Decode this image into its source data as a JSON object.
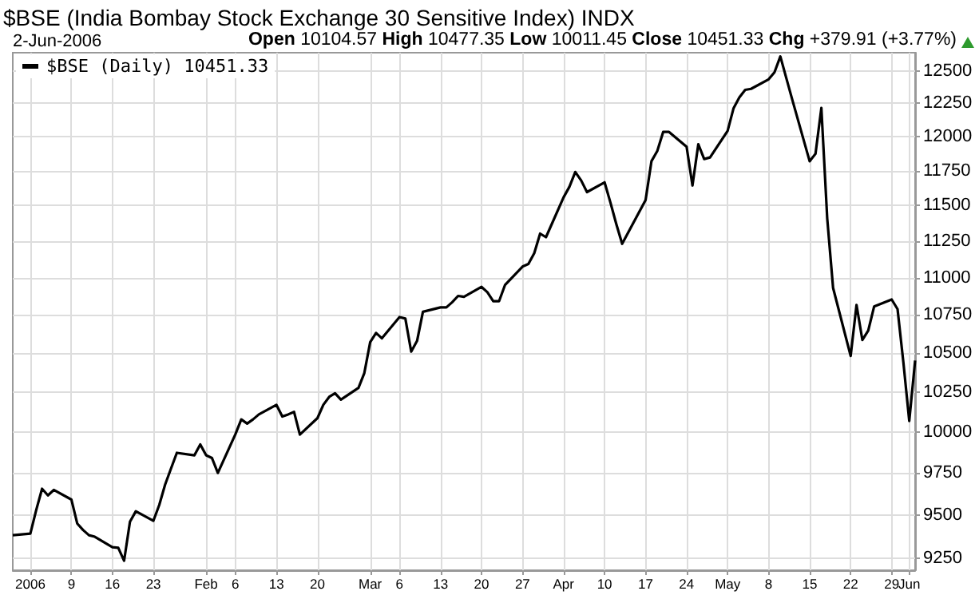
{
  "chart_data": {
    "type": "line",
    "title": "$BSE (India Bombay Stock Exchange 30 Sensitive Index) INDX",
    "subtitle": "2-Jun-2006",
    "annotations": [
      "Open 10104.57 High 10477.35 Low 10011.45 Close 10451.33 Chg +379.91 (+3.77%)"
    ],
    "x": [
      "2005-12-30",
      "2006-01-02",
      "2006-01-03",
      "2006-01-04",
      "2006-01-05",
      "2006-01-06",
      "2006-01-09",
      "2006-01-10",
      "2006-01-11",
      "2006-01-12",
      "2006-01-13",
      "2006-01-16",
      "2006-01-17",
      "2006-01-18",
      "2006-01-19",
      "2006-01-20",
      "2006-01-23",
      "2006-01-24",
      "2006-01-25",
      "2006-01-26",
      "2006-01-27",
      "2006-01-30",
      "2006-01-31",
      "2006-02-01",
      "2006-02-02",
      "2006-02-03",
      "2006-02-06",
      "2006-02-07",
      "2006-02-08",
      "2006-02-09",
      "2006-02-10",
      "2006-02-13",
      "2006-02-14",
      "2006-02-15",
      "2006-02-16",
      "2006-02-17",
      "2006-02-20",
      "2006-02-21",
      "2006-02-22",
      "2006-02-23",
      "2006-02-24",
      "2006-02-27",
      "2006-02-28",
      "2006-03-01",
      "2006-03-02",
      "2006-03-03",
      "2006-03-06",
      "2006-03-07",
      "2006-03-08",
      "2006-03-09",
      "2006-03-10",
      "2006-03-13",
      "2006-03-14",
      "2006-03-15",
      "2006-03-16",
      "2006-03-17",
      "2006-03-20",
      "2006-03-21",
      "2006-03-22",
      "2006-03-23",
      "2006-03-24",
      "2006-03-27",
      "2006-03-28",
      "2006-03-29",
      "2006-03-30",
      "2006-03-31",
      "2006-04-03",
      "2006-04-04",
      "2006-04-05",
      "2006-04-06",
      "2006-04-07",
      "2006-04-10",
      "2006-04-11",
      "2006-04-12",
      "2006-04-13",
      "2006-04-17",
      "2006-04-18",
      "2006-04-19",
      "2006-04-20",
      "2006-04-21",
      "2006-04-24",
      "2006-04-25",
      "2006-04-26",
      "2006-04-27",
      "2006-04-28",
      "2006-05-01",
      "2006-05-02",
      "2006-05-03",
      "2006-05-04",
      "2006-05-05",
      "2006-05-08",
      "2006-05-09",
      "2006-05-10",
      "2006-05-11",
      "2006-05-12",
      "2006-05-15",
      "2006-05-16",
      "2006-05-17",
      "2006-05-18",
      "2006-05-19",
      "2006-05-22",
      "2006-05-23",
      "2006-05-24",
      "2006-05-25",
      "2006-05-26",
      "2006-05-29",
      "2006-05-30",
      "2006-05-31",
      "2006-06-01",
      "2006-06-02"
    ],
    "series": [
      {
        "name": "$BSE (Daily) 10451.33",
        "color": "#000000",
        "values": [
          9381,
          9390,
          9528,
          9654,
          9615,
          9647,
          9590,
          9449,
          9411,
          9381,
          9372,
          9312,
          9308,
          9234,
          9459,
          9521,
          9465,
          9558,
          9679,
          9775,
          9871,
          9856,
          9922,
          9856,
          9839,
          9749,
          9985,
          10077,
          10051,
          10077,
          10108,
          10168,
          10095,
          10108,
          10124,
          9983,
          10085,
          10168,
          10218,
          10241,
          10201,
          10275,
          10370,
          10570,
          10630,
          10595,
          10735,
          10725,
          10508,
          10578,
          10770,
          10799,
          10799,
          10834,
          10876,
          10870,
          10937,
          10901,
          10841,
          10841,
          10949,
          11075,
          11093,
          11167,
          11303,
          11278,
          11559,
          11635,
          11742,
          11681,
          11597,
          11667,
          11522,
          11370,
          11232,
          11540,
          11820,
          11895,
          12036,
          12036,
          11926,
          11644,
          11945,
          11836,
          11848,
          12044,
          12212,
          12296,
          12353,
          12361,
          12434,
          12488,
          12611,
          12446,
          12284,
          11820,
          11875,
          12216,
          11409,
          10930,
          10480,
          10816,
          10584,
          10646,
          10805,
          10852,
          10788,
          10438,
          10067,
          10451
        ]
      }
    ],
    "xlim": [
      "2005-12-30",
      "2006-06-02"
    ],
    "ylim": [
      9180,
      12640
    ],
    "xticks": [
      {
        "value": "2006-01-02",
        "label": "2006"
      },
      {
        "value": "2006-01-09",
        "label": "9"
      },
      {
        "value": "2006-01-16",
        "label": "16"
      },
      {
        "value": "2006-01-23",
        "label": "23"
      },
      {
        "value": "2006-02-01",
        "label": "Feb"
      },
      {
        "value": "2006-02-06",
        "label": "6"
      },
      {
        "value": "2006-02-13",
        "label": "13"
      },
      {
        "value": "2006-02-20",
        "label": "20"
      },
      {
        "value": "2006-03-01",
        "label": "Mar"
      },
      {
        "value": "2006-03-06",
        "label": "6"
      },
      {
        "value": "2006-03-13",
        "label": "13"
      },
      {
        "value": "2006-03-20",
        "label": "20"
      },
      {
        "value": "2006-03-27",
        "label": "27"
      },
      {
        "value": "2006-04-03",
        "label": "Apr"
      },
      {
        "value": "2006-04-10",
        "label": "10"
      },
      {
        "value": "2006-04-17",
        "label": "17"
      },
      {
        "value": "2006-04-24",
        "label": "24"
      },
      {
        "value": "2006-05-01",
        "label": "May"
      },
      {
        "value": "2006-05-08",
        "label": "8"
      },
      {
        "value": "2006-05-15",
        "label": "15"
      },
      {
        "value": "2006-05-22",
        "label": "22"
      },
      {
        "value": "2006-05-29",
        "label": "29"
      },
      {
        "value": "2006-06-01",
        "label": "Jun"
      }
    ],
    "yticks": [
      9250,
      9500,
      9750,
      10000,
      10250,
      10500,
      10750,
      11000,
      11250,
      11500,
      11750,
      12000,
      12250,
      12500
    ],
    "log": true,
    "grid": true,
    "legend": "top left",
    "marker": "none",
    "line_style": "solid"
  }
}
